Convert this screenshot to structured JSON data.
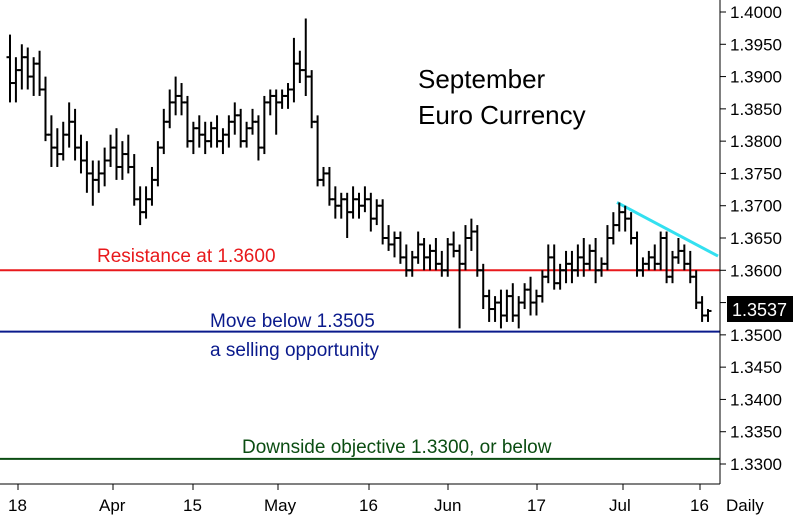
{
  "chart_data": {
    "type": "bar",
    "subtype": "ohlc",
    "title": "September",
    "subtitle": "Euro Currency",
    "frequency_label": "Daily",
    "ylim": [
      1.3255,
      1.4015
    ],
    "y_ticks": [
      "1.4000",
      "1.3950",
      "1.3900",
      "1.3850",
      "1.3800",
      "1.3750",
      "1.3700",
      "1.3650",
      "1.3600",
      "1.3550",
      "1.3500",
      "1.3450",
      "1.3400",
      "1.3350",
      "1.3300"
    ],
    "x_labels": [
      "18",
      "Apr",
      "15",
      "May",
      "16",
      "Jun",
      "17",
      "Jul",
      "16",
      "Daily"
    ],
    "last_price": {
      "value": 1.3537,
      "label": "1.3537"
    },
    "horizontal_lines": [
      {
        "value": 1.36,
        "color": "#e8191c",
        "label": "Resistance at 1.3600"
      },
      {
        "value": 1.3505,
        "color": "#0a1a8c",
        "label": "Move below 1.3505",
        "label2": "a selling opportunity"
      },
      {
        "value": 1.3308,
        "color": "#0b4d12",
        "label": "Downside objective 1.3300, or below"
      }
    ],
    "trend_line": {
      "color": "#33e0f0",
      "from": 1.3705,
      "to": 1.3622
    },
    "series": [
      {
        "ohlc": [
          [
            1.393,
            1.3965,
            1.386,
            1.389
          ],
          [
            1.389,
            1.393,
            1.386,
            1.391
          ],
          [
            1.391,
            1.395,
            1.388,
            1.393
          ],
          [
            1.393,
            1.3945,
            1.388,
            1.39
          ],
          [
            1.39,
            1.393,
            1.387,
            1.392
          ],
          [
            1.392,
            1.394,
            1.387,
            1.388
          ],
          [
            1.388,
            1.39,
            1.38,
            1.381
          ],
          [
            1.381,
            1.384,
            1.376,
            1.379
          ],
          [
            1.379,
            1.382,
            1.376,
            1.378
          ],
          [
            1.378,
            1.383,
            1.377,
            1.381
          ],
          [
            1.381,
            1.386,
            1.379,
            1.383
          ],
          [
            1.383,
            1.385,
            1.377,
            1.379
          ],
          [
            1.379,
            1.381,
            1.375,
            1.377
          ],
          [
            1.377,
            1.38,
            1.372,
            1.375
          ],
          [
            1.375,
            1.377,
            1.37,
            1.374
          ],
          [
            1.374,
            1.377,
            1.372,
            1.375
          ],
          [
            1.375,
            1.379,
            1.373,
            1.377
          ],
          [
            1.377,
            1.381,
            1.376,
            1.379
          ],
          [
            1.379,
            1.382,
            1.374,
            1.376
          ],
          [
            1.376,
            1.38,
            1.374,
            1.378
          ],
          [
            1.378,
            1.381,
            1.375,
            1.376
          ],
          [
            1.376,
            1.378,
            1.37,
            1.371
          ],
          [
            1.371,
            1.373,
            1.367,
            1.369
          ],
          [
            1.369,
            1.373,
            1.368,
            1.371
          ],
          [
            1.371,
            1.376,
            1.37,
            1.374
          ],
          [
            1.374,
            1.38,
            1.373,
            1.379
          ],
          [
            1.379,
            1.385,
            1.378,
            1.383
          ],
          [
            1.383,
            1.388,
            1.382,
            1.386
          ],
          [
            1.386,
            1.39,
            1.384,
            1.387
          ],
          [
            1.387,
            1.389,
            1.384,
            1.386
          ],
          [
            1.386,
            1.387,
            1.379,
            1.38
          ],
          [
            1.38,
            1.383,
            1.378,
            1.382
          ],
          [
            1.382,
            1.384,
            1.379,
            1.381
          ],
          [
            1.381,
            1.383,
            1.378,
            1.38
          ],
          [
            1.38,
            1.383,
            1.379,
            1.382
          ],
          [
            1.382,
            1.384,
            1.379,
            1.38
          ],
          [
            1.38,
            1.382,
            1.378,
            1.381
          ],
          [
            1.381,
            1.384,
            1.379,
            1.383
          ],
          [
            1.383,
            1.386,
            1.381,
            1.384
          ],
          [
            1.384,
            1.385,
            1.379,
            1.38
          ],
          [
            1.38,
            1.383,
            1.379,
            1.382
          ],
          [
            1.382,
            1.385,
            1.381,
            1.383
          ],
          [
            1.383,
            1.384,
            1.377,
            1.379
          ],
          [
            1.379,
            1.387,
            1.378,
            1.386
          ],
          [
            1.386,
            1.388,
            1.384,
            1.387
          ],
          [
            1.387,
            1.388,
            1.381,
            1.386
          ],
          [
            1.386,
            1.388,
            1.385,
            1.387
          ],
          [
            1.387,
            1.389,
            1.385,
            1.388
          ],
          [
            1.388,
            1.396,
            1.386,
            1.392
          ],
          [
            1.392,
            1.394,
            1.389,
            1.391
          ],
          [
            1.391,
            1.399,
            1.387,
            1.39
          ],
          [
            1.39,
            1.391,
            1.382,
            1.383
          ],
          [
            1.383,
            1.384,
            1.373,
            1.374
          ],
          [
            1.374,
            1.376,
            1.373,
            1.375
          ],
          [
            1.375,
            1.376,
            1.37,
            1.371
          ],
          [
            1.371,
            1.373,
            1.368,
            1.37
          ],
          [
            1.37,
            1.372,
            1.368,
            1.371
          ],
          [
            1.371,
            1.372,
            1.365,
            1.369
          ],
          [
            1.369,
            1.373,
            1.368,
            1.371
          ],
          [
            1.371,
            1.372,
            1.368,
            1.37
          ],
          [
            1.37,
            1.373,
            1.369,
            1.371
          ],
          [
            1.371,
            1.372,
            1.366,
            1.368
          ],
          [
            1.368,
            1.371,
            1.367,
            1.37
          ],
          [
            1.37,
            1.371,
            1.364,
            1.365
          ],
          [
            1.365,
            1.367,
            1.363,
            1.364
          ],
          [
            1.364,
            1.366,
            1.362,
            1.365
          ],
          [
            1.365,
            1.366,
            1.361,
            1.362
          ],
          [
            1.362,
            1.364,
            1.359,
            1.36
          ],
          [
            1.36,
            1.363,
            1.359,
            1.362
          ],
          [
            1.362,
            1.366,
            1.361,
            1.364
          ],
          [
            1.364,
            1.365,
            1.36,
            1.362
          ],
          [
            1.362,
            1.364,
            1.36,
            1.363
          ],
          [
            1.363,
            1.365,
            1.36,
            1.361
          ],
          [
            1.361,
            1.363,
            1.359,
            1.36
          ],
          [
            1.36,
            1.365,
            1.359,
            1.364
          ],
          [
            1.364,
            1.366,
            1.362,
            1.363
          ],
          [
            1.363,
            1.364,
            1.351,
            1.361
          ],
          [
            1.361,
            1.367,
            1.36,
            1.365
          ],
          [
            1.365,
            1.368,
            1.363,
            1.366
          ],
          [
            1.366,
            1.367,
            1.359,
            1.36
          ],
          [
            1.36,
            1.361,
            1.354,
            1.356
          ],
          [
            1.356,
            1.357,
            1.352,
            1.354
          ],
          [
            1.354,
            1.356,
            1.352,
            1.355
          ],
          [
            1.355,
            1.357,
            1.351,
            1.353
          ],
          [
            1.353,
            1.357,
            1.352,
            1.356
          ],
          [
            1.356,
            1.358,
            1.352,
            1.353
          ],
          [
            1.353,
            1.356,
            1.351,
            1.355
          ],
          [
            1.355,
            1.358,
            1.354,
            1.357
          ],
          [
            1.357,
            1.359,
            1.353,
            1.355
          ],
          [
            1.355,
            1.357,
            1.353,
            1.356
          ],
          [
            1.356,
            1.36,
            1.355,
            1.359
          ],
          [
            1.359,
            1.364,
            1.358,
            1.362
          ],
          [
            1.362,
            1.364,
            1.357,
            1.358
          ],
          [
            1.358,
            1.361,
            1.357,
            1.36
          ],
          [
            1.36,
            1.363,
            1.358,
            1.361
          ],
          [
            1.361,
            1.363,
            1.358,
            1.36
          ],
          [
            1.36,
            1.364,
            1.359,
            1.362
          ],
          [
            1.362,
            1.365,
            1.359,
            1.361
          ],
          [
            1.361,
            1.364,
            1.36,
            1.363
          ],
          [
            1.363,
            1.365,
            1.358,
            1.36
          ],
          [
            1.36,
            1.362,
            1.359,
            1.361
          ],
          [
            1.361,
            1.367,
            1.36,
            1.365
          ],
          [
            1.365,
            1.369,
            1.364,
            1.367
          ],
          [
            1.367,
            1.3705,
            1.366,
            1.369
          ],
          [
            1.369,
            1.37,
            1.366,
            1.368
          ],
          [
            1.368,
            1.369,
            1.364,
            1.365
          ],
          [
            1.365,
            1.366,
            1.359,
            1.36
          ],
          [
            1.36,
            1.362,
            1.359,
            1.361
          ],
          [
            1.361,
            1.363,
            1.36,
            1.362
          ],
          [
            1.362,
            1.364,
            1.36,
            1.361
          ],
          [
            1.361,
            1.366,
            1.36,
            1.365
          ],
          [
            1.365,
            1.366,
            1.358,
            1.359
          ],
          [
            1.359,
            1.363,
            1.358,
            1.362
          ],
          [
            1.362,
            1.365,
            1.361,
            1.363
          ],
          [
            1.363,
            1.364,
            1.36,
            1.361
          ],
          [
            1.361,
            1.363,
            1.358,
            1.359
          ],
          [
            1.359,
            1.36,
            1.354,
            1.355
          ],
          [
            1.355,
            1.356,
            1.352,
            1.353
          ],
          [
            1.353,
            1.354,
            1.352,
            1.3537
          ]
        ]
      }
    ]
  }
}
